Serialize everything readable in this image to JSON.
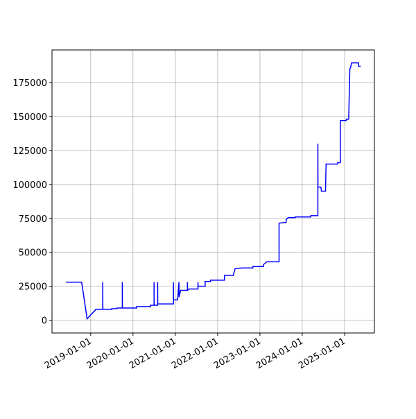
{
  "chart_data": {
    "type": "line",
    "x": [
      "2018-06-01",
      "2018-10-15",
      "2018-12-01",
      "2019-02-15",
      "2019-04-15",
      "2019-04-15",
      "2019-04-16",
      "2019-07-01",
      "2019-07-01",
      "2019-08-15",
      "2019-08-15",
      "2019-10-01",
      "2019-10-01",
      "2019-10-02",
      "2020-02-01",
      "2020-02-01",
      "2020-06-01",
      "2020-06-01",
      "2020-07-01",
      "2020-07-01",
      "2020-07-02",
      "2020-08-01",
      "2020-08-01",
      "2020-08-02",
      "2020-12-15",
      "2020-12-15",
      "2020-12-16",
      "2021-01-20",
      "2021-02-01",
      "2021-02-02",
      "2021-02-15",
      "2021-04-15",
      "2021-04-15",
      "2021-04-16",
      "2021-05-01",
      "2021-07-15",
      "2021-07-15",
      "2021-07-16",
      "2021-09-15",
      "2021-09-15",
      "2021-11-01",
      "2021-11-01",
      "2022-03-01",
      "2022-03-01",
      "2022-05-15",
      "2022-06-01",
      "2022-08-01",
      "2022-11-01",
      "2022-11-01",
      "2023-02-01",
      "2023-02-01",
      "2023-03-01",
      "2023-06-15",
      "2023-06-15",
      "2023-08-15",
      "2023-08-15",
      "2023-09-01",
      "2023-11-01",
      "2023-11-01",
      "2024-03-15",
      "2024-03-15",
      "2024-05-15",
      "2024-05-15",
      "2024-05-16",
      "2024-06-10",
      "2024-06-15",
      "2024-07-20",
      "2024-07-25",
      "2024-11-01",
      "2024-11-01",
      "2024-11-25",
      "2024-11-25",
      "2025-01-15",
      "2025-01-15",
      "2025-02-05",
      "2025-02-15",
      "2025-02-25",
      "2025-03-01",
      "2025-05-01",
      "2025-05-01",
      "2025-05-20"
    ],
    "series": [
      {
        "color": "#0000ff",
        "values": [
          28000,
          28000,
          1000,
          8000,
          8000,
          28000,
          8000,
          8000,
          8500,
          8500,
          9000,
          9000,
          28000,
          9000,
          9000,
          10000,
          10000,
          11000,
          11000,
          28000,
          11000,
          11000,
          28000,
          12000,
          12000,
          28000,
          15000,
          15000,
          28000,
          17000,
          22000,
          22000,
          28000,
          22000,
          23000,
          23000,
          28000,
          25000,
          25000,
          28500,
          28500,
          29500,
          29500,
          33000,
          33000,
          38000,
          38500,
          38500,
          39500,
          39500,
          41000,
          43000,
          43000,
          71500,
          72000,
          74000,
          75500,
          75500,
          76000,
          76000,
          77000,
          77000,
          130000,
          98000,
          98000,
          95000,
          95000,
          115000,
          115000,
          116000,
          116000,
          147000,
          147000,
          148000,
          148000,
          185000,
          187000,
          189500,
          189500,
          187000,
          187000
        ]
      }
    ],
    "xlim": [
      "2018-02-01",
      "2025-09-15"
    ],
    "xticks": [
      "2019-01-01",
      "2020-01-01",
      "2021-01-01",
      "2022-01-01",
      "2023-01-01",
      "2024-01-01",
      "2025-01-01"
    ],
    "ylim": [
      -9400,
      199000
    ],
    "yticks": [
      0,
      25000,
      50000,
      75000,
      100000,
      125000,
      150000,
      175000
    ],
    "grid": true
  }
}
